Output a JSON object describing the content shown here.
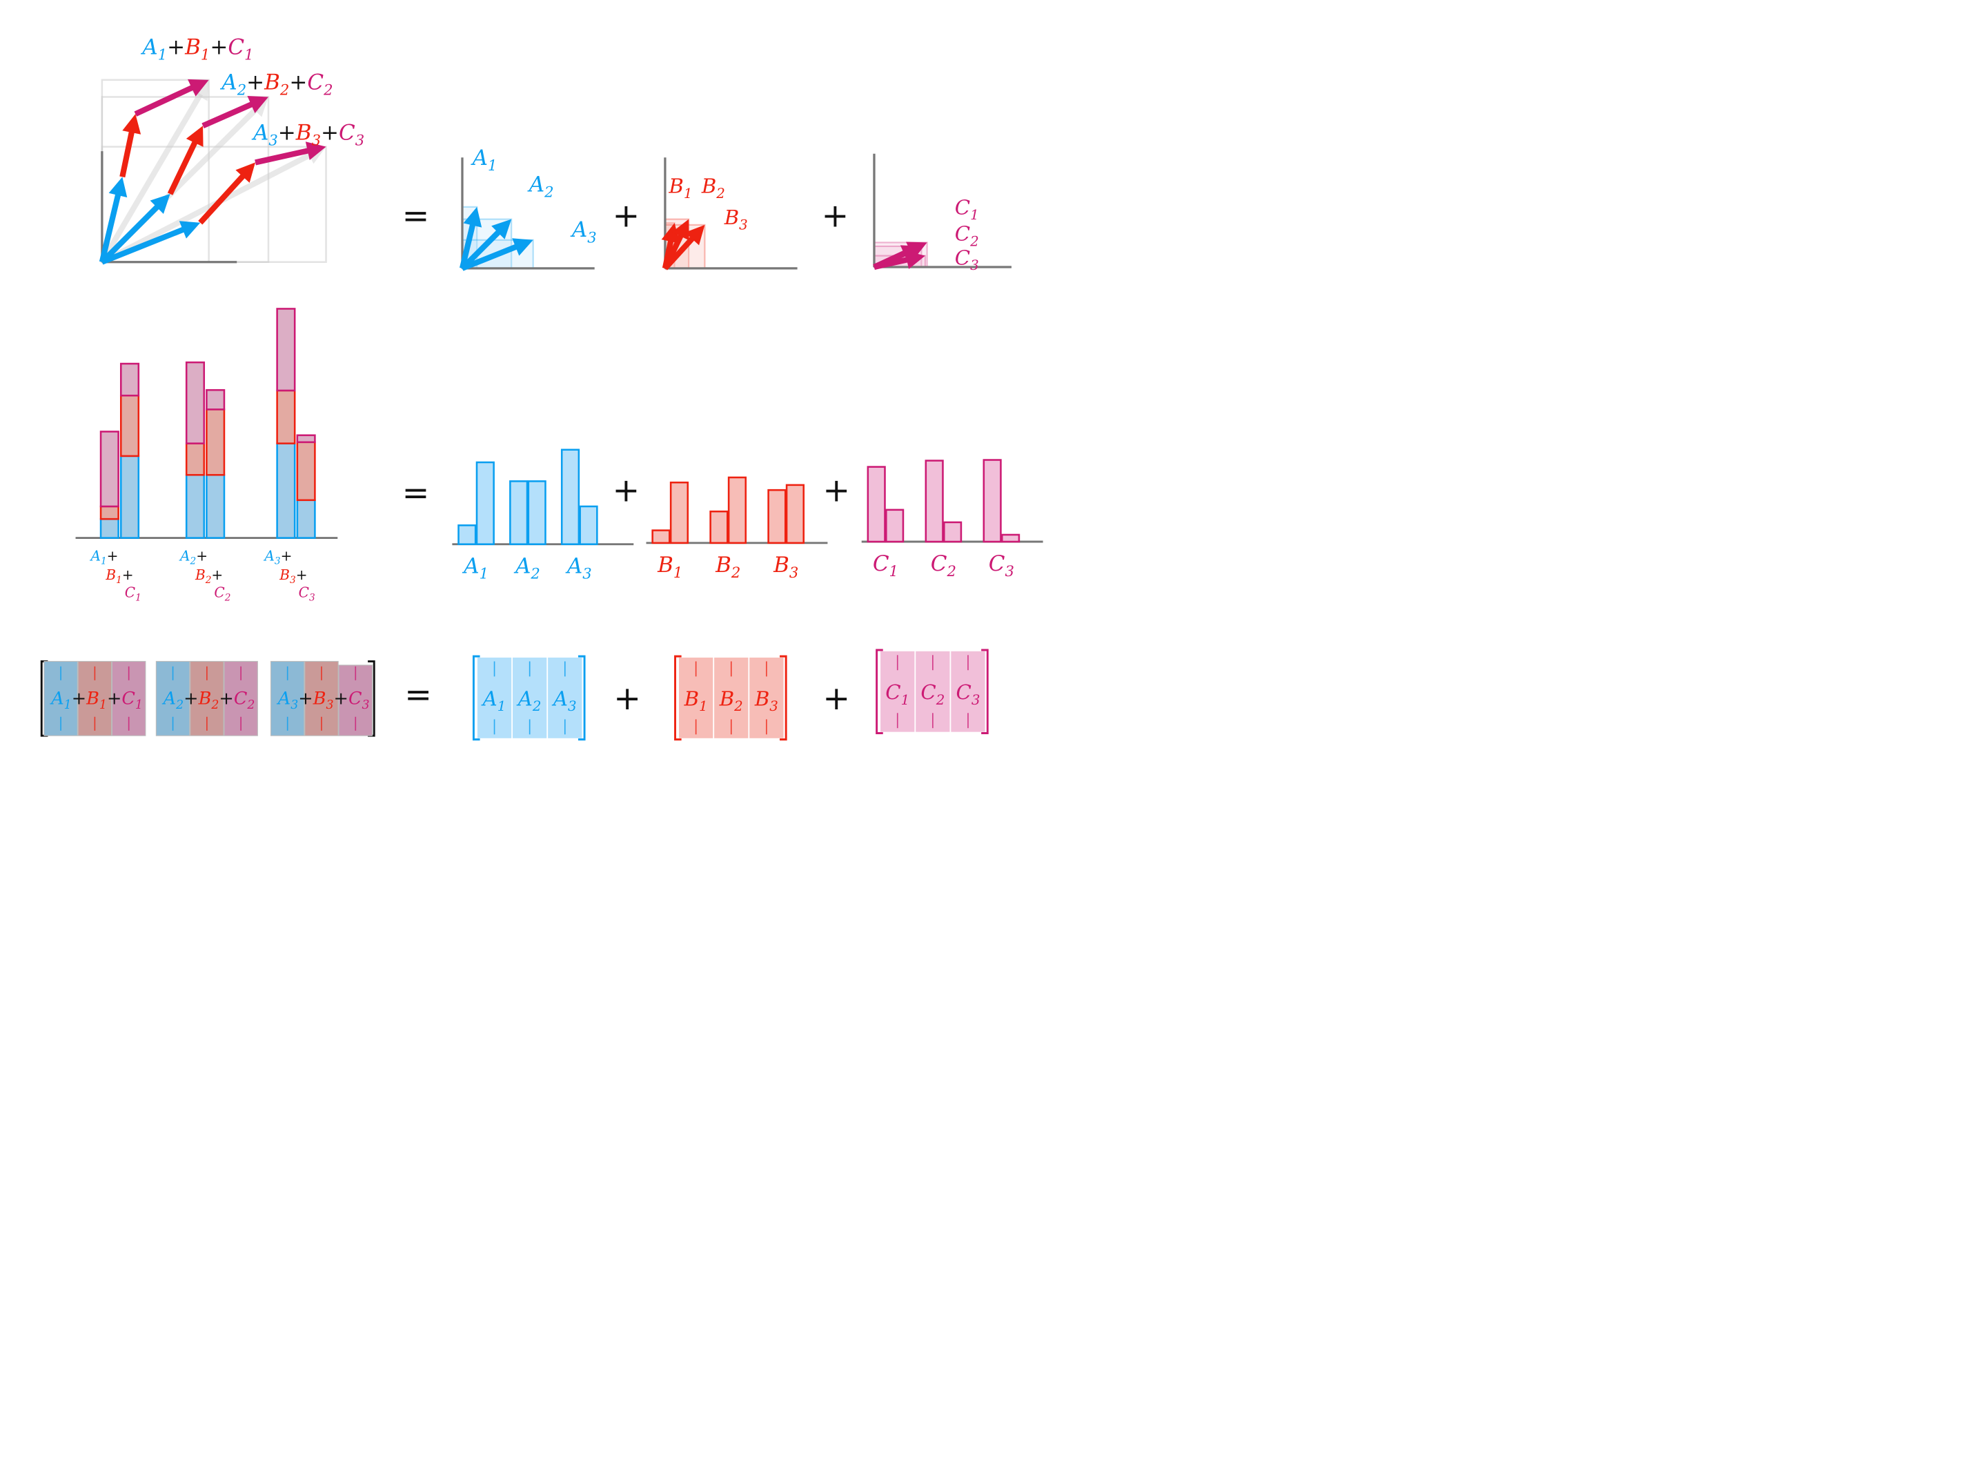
{
  "colors": {
    "a": "#0a9ff0",
    "b": "#ee2211",
    "c": "#cc1a74",
    "a_fill_light": "#b4e0fb",
    "b_fill_light": "#f7bdb7",
    "c_fill_light": "#f1bfd9",
    "a_fill_mid": "#a1cce8",
    "b_fill_mid": "#e3aaa2",
    "c_fill_mid": "#dcaec5",
    "a_mat": "#8cb9d5",
    "b_mat": "#ca9a98",
    "c_mat": "#c995b2",
    "axis": "#777777",
    "ink": "#111111"
  },
  "ops": {
    "equals": "=",
    "plus": "+"
  },
  "vector_row": {
    "sum_labels": [
      {
        "a": "A",
        "a_sub": "1",
        "b": "B",
        "b_sub": "1",
        "c": "C",
        "c_sub": "1"
      },
      {
        "a": "A",
        "a_sub": "2",
        "b": "B",
        "b_sub": "2",
        "c": "C",
        "c_sub": "2"
      },
      {
        "a": "A",
        "a_sub": "3",
        "b": "B",
        "b_sub": "3",
        "c": "C",
        "c_sub": "3"
      }
    ],
    "panels": {
      "a": [
        {
          "name": "A",
          "sub": "1"
        },
        {
          "name": "A",
          "sub": "2"
        },
        {
          "name": "A",
          "sub": "3"
        }
      ],
      "b": [
        {
          "name": "B",
          "sub": "1"
        },
        {
          "name": "B",
          "sub": "2"
        },
        {
          "name": "B",
          "sub": "3"
        }
      ],
      "c": [
        {
          "name": "C",
          "sub": "1"
        },
        {
          "name": "C",
          "sub": "2"
        },
        {
          "name": "C",
          "sub": "3"
        }
      ]
    }
  },
  "chart_data": [
    {
      "type": "bar",
      "stacked": true,
      "categories": [
        "A1+B1+C1",
        "A2+B2+C2",
        "A3+B3+C3"
      ],
      "series": [
        {
          "values": [
            [
              0.15,
              0.65
            ],
            [
              0.5,
              0.5
            ],
            [
              0.75,
              0.3
            ]
          ]
        },
        {
          "values": [
            [
              0.1,
              0.48
            ],
            [
              0.25,
              0.52
            ],
            [
              0.42,
              0.46
            ]
          ]
        },
        {
          "values": [
            [
              1.08,
              0.46
            ],
            [
              1.17,
              0.28
            ],
            [
              1.18,
              0.1
            ]
          ]
        }
      ],
      "category_labels": [
        {
          "a": "A",
          "a_sub": "1",
          "b": "B",
          "b_sub": "1",
          "c": "C",
          "c_sub": "1"
        },
        {
          "a": "A",
          "a_sub": "2",
          "b": "B",
          "b_sub": "2",
          "c": "C",
          "c_sub": "2"
        },
        {
          "a": "A",
          "a_sub": "3",
          "b": "B",
          "b_sub": "3",
          "c": "C",
          "c_sub": "3"
        }
      ]
    },
    {
      "type": "bar",
      "categories": [
        {
          "name": "A",
          "sub": "1"
        },
        {
          "name": "A",
          "sub": "2"
        },
        {
          "name": "A",
          "sub": "3"
        }
      ],
      "values": [
        [
          0.15,
          0.65
        ],
        [
          0.5,
          0.5
        ],
        [
          0.75,
          0.3
        ]
      ]
    },
    {
      "type": "bar",
      "categories": [
        {
          "name": "B",
          "sub": "1"
        },
        {
          "name": "B",
          "sub": "2"
        },
        {
          "name": "B",
          "sub": "3"
        }
      ],
      "values": [
        [
          0.1,
          0.48
        ],
        [
          0.25,
          0.52
        ],
        [
          0.42,
          0.46
        ]
      ]
    },
    {
      "type": "bar",
      "categories": [
        {
          "name": "C",
          "sub": "1"
        },
        {
          "name": "C",
          "sub": "2"
        },
        {
          "name": "C",
          "sub": "3"
        }
      ],
      "values": [
        [
          1.08,
          0.46
        ],
        [
          1.17,
          0.28
        ],
        [
          1.18,
          0.1
        ]
      ]
    }
  ],
  "matrix_row": {
    "sum_columns": [
      {
        "a": "A",
        "a_sub": "1",
        "b": "B",
        "b_sub": "1",
        "c": "C",
        "c_sub": "1"
      },
      {
        "a": "A",
        "a_sub": "2",
        "b": "B",
        "b_sub": "2",
        "c": "C",
        "c_sub": "2"
      },
      {
        "a": "A",
        "a_sub": "3",
        "b": "B",
        "b_sub": "3",
        "c": "C",
        "c_sub": "3"
      }
    ],
    "a_cols": [
      {
        "name": "A",
        "sub": "1"
      },
      {
        "name": "A",
        "sub": "2"
      },
      {
        "name": "A",
        "sub": "3"
      }
    ],
    "b_cols": [
      {
        "name": "B",
        "sub": "1"
      },
      {
        "name": "B",
        "sub": "2"
      },
      {
        "name": "B",
        "sub": "3"
      }
    ],
    "c_cols": [
      {
        "name": "C",
        "sub": "1"
      },
      {
        "name": "C",
        "sub": "2"
      },
      {
        "name": "C",
        "sub": "3"
      }
    ]
  }
}
